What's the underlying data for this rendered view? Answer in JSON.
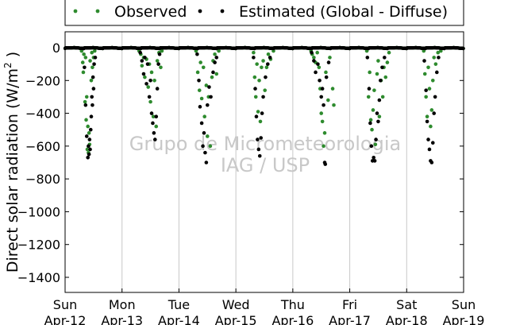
{
  "chart_data": {
    "type": "scatter",
    "ylabel": "Direct solar radiation (W/m²)",
    "ylim": [
      -1500,
      0
    ],
    "yticks": [
      0,
      -200,
      -400,
      -600,
      -800,
      -1000,
      -1200,
      -1400
    ],
    "x_categories": [
      {
        "day": "Sun",
        "date": "Apr-12"
      },
      {
        "day": "Mon",
        "date": "Apr-13"
      },
      {
        "day": "Tue",
        "date": "Apr-14"
      },
      {
        "day": "Wed",
        "date": "Apr-15"
      },
      {
        "day": "Thu",
        "date": "Apr-16"
      },
      {
        "day": "Fri",
        "date": "Apr-17"
      },
      {
        "day": "Sat",
        "date": "Apr-18"
      },
      {
        "day": "Sun",
        "date": "Apr-19"
      }
    ],
    "grid": "vertical",
    "legend_position": "top",
    "watermark": [
      "Grupo de Micrometeorologia",
      "IAG / USP"
    ],
    "series": [
      {
        "name": "Observed",
        "color": "#2e8b2e",
        "points": [
          [
            0.29,
            -20
          ],
          [
            0.31,
            -90
          ],
          [
            0.32,
            -150
          ],
          [
            0.33,
            -40
          ],
          [
            0.35,
            -330
          ],
          [
            0.36,
            -60
          ],
          [
            0.37,
            -440
          ],
          [
            0.38,
            -300
          ],
          [
            0.39,
            -620
          ],
          [
            0.4,
            -480
          ],
          [
            0.41,
            -640
          ],
          [
            0.42,
            -520
          ],
          [
            0.43,
            -590
          ],
          [
            0.44,
            -80
          ],
          [
            0.46,
            -200
          ],
          [
            0.47,
            -30
          ],
          [
            0.48,
            -120
          ],
          [
            0.5,
            -60
          ],
          [
            0.52,
            -20
          ],
          [
            1.3,
            -20
          ],
          [
            1.33,
            -40
          ],
          [
            1.35,
            -110
          ],
          [
            1.38,
            -60
          ],
          [
            1.4,
            -180
          ],
          [
            1.43,
            -70
          ],
          [
            1.46,
            -240
          ],
          [
            1.48,
            -100
          ],
          [
            1.5,
            -330
          ],
          [
            1.52,
            -150
          ],
          [
            1.55,
            -420
          ],
          [
            1.57,
            -200
          ],
          [
            1.6,
            -480
          ],
          [
            1.62,
            -80
          ],
          [
            1.65,
            -30
          ],
          [
            1.68,
            -120
          ],
          [
            1.7,
            -20
          ],
          [
            2.3,
            -20
          ],
          [
            2.33,
            -150
          ],
          [
            2.36,
            -260
          ],
          [
            2.38,
            -90
          ],
          [
            2.4,
            -310
          ],
          [
            2.43,
            -120
          ],
          [
            2.45,
            -420
          ],
          [
            2.48,
            -230
          ],
          [
            2.5,
            -540
          ],
          [
            2.52,
            -300
          ],
          [
            2.55,
            -600
          ],
          [
            2.58,
            -180
          ],
          [
            2.6,
            -80
          ],
          [
            2.63,
            -40
          ],
          [
            2.66,
            -160
          ],
          [
            2.7,
            -20
          ],
          [
            3.31,
            -30
          ],
          [
            3.33,
            -180
          ],
          [
            3.35,
            -300
          ],
          [
            3.37,
            -100
          ],
          [
            3.39,
            -390
          ],
          [
            3.41,
            -200
          ],
          [
            3.43,
            -450
          ],
          [
            3.45,
            -120
          ],
          [
            3.48,
            -80
          ],
          [
            3.51,
            -260
          ],
          [
            3.54,
            -120
          ],
          [
            3.57,
            -40
          ],
          [
            3.61,
            -70
          ],
          [
            3.66,
            -20
          ],
          [
            4.32,
            -20
          ],
          [
            4.34,
            -40
          ],
          [
            4.37,
            -60
          ],
          [
            4.4,
            -90
          ],
          [
            4.43,
            -30
          ],
          [
            4.46,
            -120
          ],
          [
            4.48,
            -250
          ],
          [
            4.5,
            -400
          ],
          [
            4.52,
            -450
          ],
          [
            4.54,
            -600
          ],
          [
            4.56,
            -520
          ],
          [
            4.58,
            -150
          ],
          [
            4.62,
            -320
          ],
          [
            4.65,
            -60
          ],
          [
            4.7,
            -250
          ],
          [
            4.72,
            -350
          ],
          [
            5.3,
            -20
          ],
          [
            5.33,
            -300
          ],
          [
            5.35,
            -150
          ],
          [
            5.37,
            -440
          ],
          [
            5.39,
            -500
          ],
          [
            5.41,
            -380
          ],
          [
            5.43,
            -260
          ],
          [
            5.45,
            -590
          ],
          [
            5.48,
            -160
          ],
          [
            5.5,
            -80
          ],
          [
            5.52,
            -420
          ],
          [
            5.55,
            -200
          ],
          [
            5.58,
            -300
          ],
          [
            5.6,
            -120
          ],
          [
            5.63,
            -180
          ],
          [
            5.66,
            -90
          ],
          [
            5.69,
            -30
          ],
          [
            6.3,
            -20
          ],
          [
            6.32,
            -160
          ],
          [
            6.34,
            -300
          ],
          [
            6.36,
            -420
          ],
          [
            6.38,
            -120
          ],
          [
            6.4,
            -250
          ],
          [
            6.42,
            -480
          ],
          [
            6.44,
            -380
          ],
          [
            6.46,
            -200
          ],
          [
            6.48,
            -60
          ],
          [
            6.51,
            -100
          ],
          [
            6.55,
            -30
          ],
          [
            6.6,
            -20
          ]
        ]
      },
      {
        "name": "Estimated (Global - Diffuse)",
        "color": "#000000",
        "points": [
          [
            0.34,
            -120
          ],
          [
            0.36,
            -350
          ],
          [
            0.38,
            -540
          ],
          [
            0.4,
            -670
          ],
          [
            0.41,
            -600
          ],
          [
            0.42,
            -650
          ],
          [
            0.43,
            -560
          ],
          [
            0.44,
            -620
          ],
          [
            0.45,
            -500
          ],
          [
            0.46,
            -420
          ],
          [
            0.47,
            -300
          ],
          [
            0.48,
            -350
          ],
          [
            0.49,
            -180
          ],
          [
            0.5,
            -250
          ],
          [
            0.51,
            -100
          ],
          [
            0.53,
            -60
          ],
          [
            1.32,
            -30
          ],
          [
            1.35,
            -80
          ],
          [
            1.38,
            -160
          ],
          [
            1.4,
            -60
          ],
          [
            1.43,
            -220
          ],
          [
            1.45,
            -100
          ],
          [
            1.48,
            -300
          ],
          [
            1.5,
            -200
          ],
          [
            1.52,
            -400
          ],
          [
            1.54,
            -460
          ],
          [
            1.56,
            -520
          ],
          [
            1.58,
            -560
          ],
          [
            1.6,
            -420
          ],
          [
            1.62,
            -250
          ],
          [
            1.64,
            -100
          ],
          [
            1.66,
            -40
          ],
          [
            2.32,
            -40
          ],
          [
            2.35,
            -200
          ],
          [
            2.37,
            -360
          ],
          [
            2.4,
            -460
          ],
          [
            2.42,
            -600
          ],
          [
            2.44,
            -520
          ],
          [
            2.46,
            -640
          ],
          [
            2.48,
            -700
          ],
          [
            2.5,
            -350
          ],
          [
            2.53,
            -240
          ],
          [
            2.56,
            -300
          ],
          [
            2.6,
            -150
          ],
          [
            2.63,
            -90
          ],
          [
            2.66,
            -60
          ],
          [
            3.31,
            -60
          ],
          [
            3.34,
            -250
          ],
          [
            3.36,
            -420
          ],
          [
            3.38,
            -560
          ],
          [
            3.4,
            -620
          ],
          [
            3.42,
            -660
          ],
          [
            3.44,
            -550
          ],
          [
            3.46,
            -400
          ],
          [
            3.48,
            -300
          ],
          [
            3.52,
            -180
          ],
          [
            3.56,
            -100
          ],
          [
            3.6,
            -60
          ],
          [
            4.33,
            -30
          ],
          [
            4.37,
            -80
          ],
          [
            4.4,
            -150
          ],
          [
            4.44,
            -100
          ],
          [
            4.47,
            -200
          ],
          [
            4.5,
            -300
          ],
          [
            4.52,
            -250
          ],
          [
            4.54,
            -350
          ],
          [
            4.56,
            -700
          ],
          [
            4.57,
            -710
          ],
          [
            4.59,
            -180
          ],
          [
            4.63,
            -90
          ],
          [
            5.31,
            -60
          ],
          [
            5.34,
            -250
          ],
          [
            5.36,
            -460
          ],
          [
            5.38,
            -600
          ],
          [
            5.4,
            -690
          ],
          [
            5.42,
            -670
          ],
          [
            5.44,
            -690
          ],
          [
            5.46,
            -560
          ],
          [
            5.48,
            -400
          ],
          [
            5.5,
            -450
          ],
          [
            5.52,
            -320
          ],
          [
            5.54,
            -200
          ],
          [
            5.57,
            -120
          ],
          [
            5.61,
            -60
          ],
          [
            6.31,
            -80
          ],
          [
            6.34,
            -260
          ],
          [
            6.36,
            -450
          ],
          [
            6.38,
            -560
          ],
          [
            6.4,
            -620
          ],
          [
            6.42,
            -690
          ],
          [
            6.44,
            -700
          ],
          [
            6.46,
            -580
          ],
          [
            6.48,
            -400
          ],
          [
            6.5,
            -300
          ],
          [
            6.53,
            -150
          ],
          [
            6.56,
            -60
          ]
        ]
      }
    ]
  }
}
